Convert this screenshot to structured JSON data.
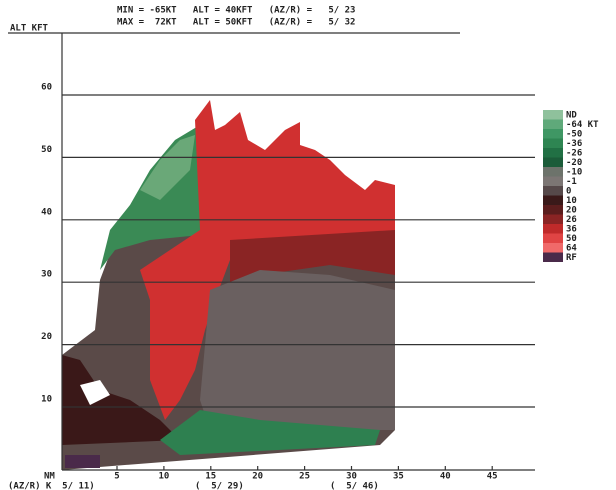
{
  "header": {
    "lines": [
      "MIN = -65KT   ALT = 40KFT   (AZ/R) =   5/ 23",
      "MAX =  72KT   ALT = 50KFT   (AZ/R) =   5/ 32"
    ]
  },
  "y_axis": {
    "label": "ALT KFT",
    "ticks": [
      "10",
      "20",
      "30",
      "40",
      "50",
      "60"
    ]
  },
  "x_axis": {
    "label": "NM",
    "ticks": [
      "5",
      "10",
      "15",
      "20",
      "25",
      "30",
      "35",
      "40",
      "45"
    ]
  },
  "footer": {
    "items": [
      "(AZ/R) K  5/ 11)",
      "(  5/ 29)",
      "(  5/ 46)"
    ]
  },
  "legend": {
    "items": [
      {
        "label": "ND",
        "color": "#8fc19c"
      },
      {
        "label": "-64 KT",
        "color": "#5fa97a"
      },
      {
        "label": "-50",
        "color": "#3f9764"
      },
      {
        "label": "-36",
        "color": "#2e8552"
      },
      {
        "label": "-26",
        "color": "#217044"
      },
      {
        "label": "-20",
        "color": "#1b5c39"
      },
      {
        "label": "-10",
        "color": "#6d736b"
      },
      {
        "label": "-1",
        "color": "#7c7674"
      },
      {
        "label": "0",
        "color": "#56494a"
      },
      {
        "label": "10",
        "color": "#3a1919"
      },
      {
        "label": "20",
        "color": "#5b1d1d"
      },
      {
        "label": "26",
        "color": "#8a2424"
      },
      {
        "label": "36",
        "color": "#bf2a2a"
      },
      {
        "label": "50",
        "color": "#e04444"
      },
      {
        "label": "64",
        "color": "#f06a6a"
      },
      {
        "label": "RF",
        "color": "#4a2a4a"
      }
    ]
  }
}
